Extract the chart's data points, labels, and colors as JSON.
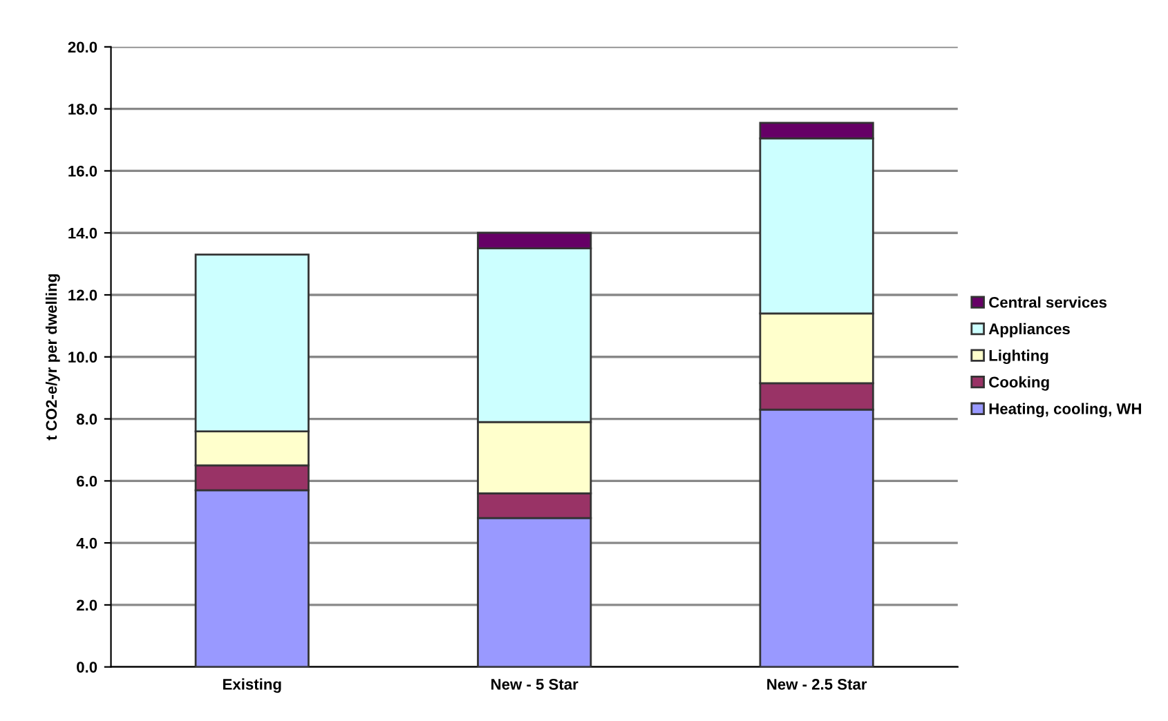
{
  "chart_data": {
    "type": "bar",
    "stacked": true,
    "ylabel": "t CO2-e/yr per dwelling",
    "categories": [
      "Existing",
      "New - 5 Star",
      "New - 2.5 Star"
    ],
    "series": [
      {
        "name": "Heating, cooling, WH",
        "color": "#9999ff",
        "values": [
          5.7,
          4.8,
          8.3
        ]
      },
      {
        "name": "Cooking",
        "color": "#993366",
        "values": [
          0.8,
          0.8,
          0.85
        ]
      },
      {
        "name": "Lighting",
        "color": "#ffffcc",
        "values": [
          1.1,
          2.3,
          2.25
        ]
      },
      {
        "name": "Appliances",
        "color": "#ccffff",
        "values": [
          5.7,
          5.6,
          5.65
        ]
      },
      {
        "name": "Central services",
        "color": "#660066",
        "values": [
          null,
          0.5,
          0.5
        ]
      }
    ],
    "ylim": [
      0,
      20
    ],
    "yticks": [
      {
        "value": 0,
        "label": "0.0"
      },
      {
        "value": 2,
        "label": "2.0"
      },
      {
        "value": 4,
        "label": "4.0"
      },
      {
        "value": 6,
        "label": "6.0"
      },
      {
        "value": 8,
        "label": "8.0"
      },
      {
        "value": 10,
        "label": "10.0"
      },
      {
        "value": 12,
        "label": "12.0"
      },
      {
        "value": 14,
        "label": "14.0"
      },
      {
        "value": 16,
        "label": "16.0"
      },
      {
        "value": 18,
        "label": "18.0"
      },
      {
        "value": 20,
        "label": "20.0"
      }
    ],
    "grid": "y",
    "legend": "right"
  }
}
